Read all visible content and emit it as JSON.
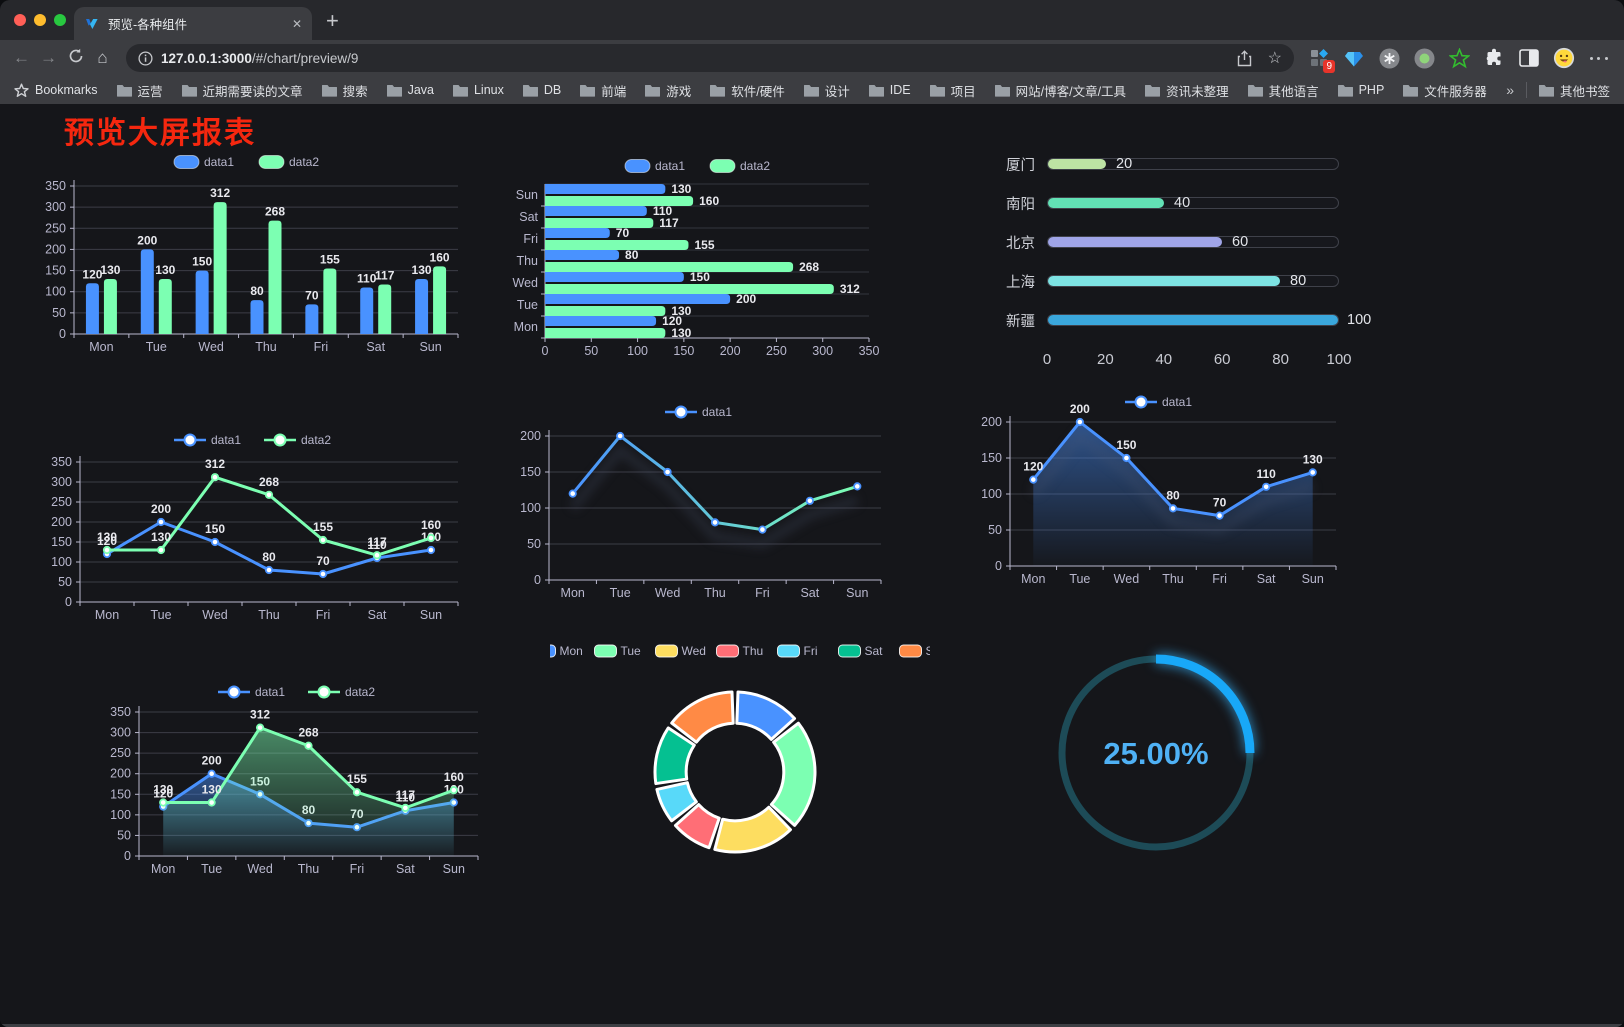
{
  "browser": {
    "tab_title": "预览-各种组件",
    "url_prefix": "127.0.0.1:3000",
    "url_path": "/#/chart/preview/9",
    "extension_badge": "9",
    "bookmarks_label": "Bookmarks",
    "bookmark_items": [
      "运营",
      "近期需要读的文章",
      "搜索",
      "Java",
      "Linux",
      "DB",
      "前端",
      "游戏",
      "软件/硬件",
      "设计",
      "IDE",
      "项目",
      "网站/博客/文章/工具",
      "资讯未整理",
      "其他语言",
      "PHP",
      "文件服务器"
    ],
    "other_bookmarks": "其他书签",
    "icons": {
      "back": "←",
      "forward": "→",
      "home": "⌂",
      "star": "☆",
      "new_tab": "+",
      "close_tab": "✕",
      "overflow": "»"
    }
  },
  "page": {
    "title": "预览大屏报表",
    "title_color": "#f5270f",
    "background": "#15161a"
  },
  "chart_data": [
    {
      "id": "bar-vertical",
      "type": "bar",
      "categories": [
        "Mon",
        "Tue",
        "Wed",
        "Thu",
        "Fri",
        "Sat",
        "Sun"
      ],
      "series": [
        {
          "name": "data1",
          "color": "#4992ff",
          "values": [
            120,
            200,
            150,
            80,
            70,
            110,
            130
          ]
        },
        {
          "name": "data2",
          "color": "#7cffb2",
          "values": [
            130,
            130,
            312,
            268,
            155,
            117,
            160
          ]
        }
      ],
      "ylim": [
        0,
        350
      ],
      "yticks": [
        0,
        50,
        100,
        150,
        200,
        250,
        300,
        350
      ],
      "legend_position": "top",
      "grid": true,
      "value_labels": true
    },
    {
      "id": "bar-horizontal",
      "type": "bar-horizontal",
      "categories": [
        "Mon",
        "Tue",
        "Wed",
        "Thu",
        "Fri",
        "Sat",
        "Sun"
      ],
      "series": [
        {
          "name": "data1",
          "color": "#4992ff",
          "values": [
            120,
            200,
            150,
            80,
            70,
            110,
            130
          ]
        },
        {
          "name": "data2",
          "color": "#7cffb2",
          "values": [
            130,
            130,
            312,
            268,
            155,
            117,
            160
          ]
        }
      ],
      "xlim": [
        0,
        350
      ],
      "xticks": [
        0,
        50,
        100,
        150,
        200,
        250,
        300,
        350
      ],
      "legend_position": "top",
      "value_labels": true
    },
    {
      "id": "progress-bars",
      "type": "bar-horizontal-progress",
      "items": [
        {
          "label": "厦门",
          "value": 20,
          "color": "#bde3a4"
        },
        {
          "label": "南阳",
          "value": 40,
          "color": "#62e1b5"
        },
        {
          "label": "北京",
          "value": 60,
          "color": "#a0a5e8"
        },
        {
          "label": "上海",
          "value": 80,
          "color": "#7de3e3"
        },
        {
          "label": "新疆",
          "value": 100,
          "color": "#3aa7dc"
        }
      ],
      "max": 100,
      "xticks": [
        0,
        20,
        40,
        60,
        80,
        100
      ]
    },
    {
      "id": "line-two-series",
      "type": "line",
      "categories": [
        "Mon",
        "Tue",
        "Wed",
        "Thu",
        "Fri",
        "Sat",
        "Sun"
      ],
      "series": [
        {
          "name": "data1",
          "color": "#4992ff",
          "values": [
            120,
            200,
            150,
            80,
            70,
            110,
            130
          ]
        },
        {
          "name": "data2",
          "color": "#7cffb2",
          "values": [
            130,
            130,
            312,
            268,
            155,
            117,
            160
          ]
        }
      ],
      "ylim": [
        0,
        350
      ],
      "yticks": [
        0,
        50,
        100,
        150,
        200,
        250,
        300,
        350
      ],
      "legend_position": "top",
      "value_labels": true
    },
    {
      "id": "line-gradient",
      "type": "line",
      "categories": [
        "Mon",
        "Tue",
        "Wed",
        "Thu",
        "Fri",
        "Sat",
        "Sun"
      ],
      "series": [
        {
          "name": "data1",
          "color": "#4992ff",
          "color_start": "#4992ff",
          "color_end": "#7cffb2",
          "values": [
            120,
            200,
            150,
            80,
            70,
            110,
            130
          ]
        }
      ],
      "ylim": [
        0,
        200
      ],
      "yticks": [
        0,
        50,
        100,
        150,
        200
      ],
      "legend_position": "top",
      "value_labels": false,
      "shadow": true
    },
    {
      "id": "area-single",
      "type": "area",
      "categories": [
        "Mon",
        "Tue",
        "Wed",
        "Thu",
        "Fri",
        "Sat",
        "Sun"
      ],
      "series": [
        {
          "name": "data1",
          "color": "#4992ff",
          "area": true,
          "values": [
            120,
            200,
            150,
            80,
            70,
            110,
            130
          ]
        }
      ],
      "ylim": [
        0,
        200
      ],
      "yticks": [
        0,
        50,
        100,
        150,
        200
      ],
      "legend_position": "top",
      "value_labels": true,
      "shadow": true
    },
    {
      "id": "area-two-series",
      "type": "area",
      "categories": [
        "Mon",
        "Tue",
        "Wed",
        "Thu",
        "Fri",
        "Sat",
        "Sun"
      ],
      "series": [
        {
          "name": "data1",
          "color": "#4992ff",
          "area": true,
          "values": [
            120,
            200,
            150,
            80,
            70,
            110,
            130
          ]
        },
        {
          "name": "data2",
          "color": "#7cffb2",
          "area": true,
          "values": [
            130,
            130,
            312,
            268,
            155,
            117,
            160
          ]
        }
      ],
      "ylim": [
        0,
        350
      ],
      "yticks": [
        0,
        50,
        100,
        150,
        200,
        250,
        300,
        350
      ],
      "legend_position": "top",
      "value_labels": true
    },
    {
      "id": "donut",
      "type": "pie",
      "labels": [
        "Mon",
        "Tue",
        "Wed",
        "Thu",
        "Fri",
        "Sat",
        "Sun"
      ],
      "values": [
        120,
        200,
        150,
        80,
        70,
        110,
        130
      ],
      "colors": [
        "#4992ff",
        "#7cffb2",
        "#fddd60",
        "#ff6e76",
        "#58d9f9",
        "#05c091",
        "#ff8a45"
      ],
      "inner_radius_ratio": 0.61,
      "legend_position": "top"
    },
    {
      "id": "gauge",
      "type": "gauge",
      "value": 25,
      "max": 100,
      "display": "25.00%",
      "arc_color": "#18a8f8",
      "track_color": "#1d4b57",
      "text_color": "#4fb1f5"
    }
  ]
}
